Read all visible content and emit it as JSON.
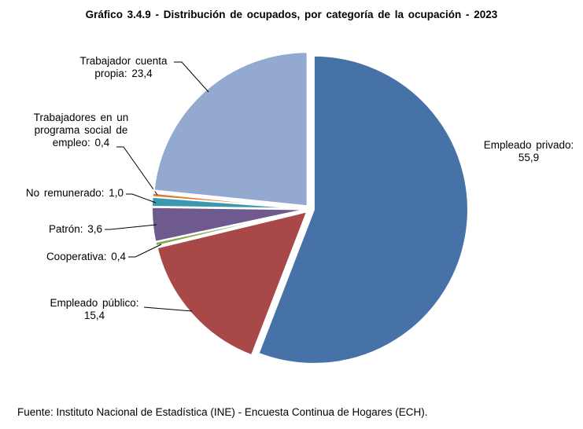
{
  "title": "Gráfico 3.4.9 - Distribución de ocupados, por categoría de la ocupación - 2023",
  "source": "Fuente: Instituto Nacional de Estadística (INE) - Encuesta Continua de Hogares (ECH).",
  "chart_data": {
    "type": "pie",
    "title": "Gráfico 3.4.9 - Distribución de ocupados, por categoría de la ocupación - 2023",
    "slices": [
      {
        "label": "Empleado privado",
        "value": 55.9,
        "value_text": "55,9",
        "color": "#4672A8",
        "label_lines": [
          "Empleado privado:",
          "55,9"
        ]
      },
      {
        "label": "Empleado público",
        "value": 15.4,
        "value_text": "15,4",
        "color": "#A84848",
        "label_lines": [
          "Empleado público:",
          "15,4"
        ]
      },
      {
        "label": "Cooperativa",
        "value": 0.4,
        "value_text": "0,4",
        "color": "#86A84A",
        "label_lines": [
          "Cooperativa: 0,4"
        ]
      },
      {
        "label": "Patrón",
        "value": 3.6,
        "value_text": "3,6",
        "color": "#6E5A8F",
        "label_lines": [
          "Patrón: 3,6"
        ]
      },
      {
        "label": "No remunerado",
        "value": 1.0,
        "value_text": "1,0",
        "color": "#3C97AF",
        "label_lines": [
          "No remunerado: 1,0"
        ]
      },
      {
        "label": "Trabajadores en un programa social de empleo",
        "value": 0.4,
        "value_text": "0,4",
        "color": "#E07B30",
        "label_lines": [
          "Trabajadores en un",
          "programa social de",
          "empleo: 0,4"
        ]
      },
      {
        "label": "Trabajador cuenta propia",
        "value": 23.4,
        "value_text": "23,4",
        "color": "#93A9CF",
        "label_lines": [
          "Trabajador cuenta",
          "propia: 23,4"
        ]
      }
    ],
    "start_angle_deg": 0,
    "direction": "clockwise",
    "exploded": true,
    "legend": "none"
  }
}
